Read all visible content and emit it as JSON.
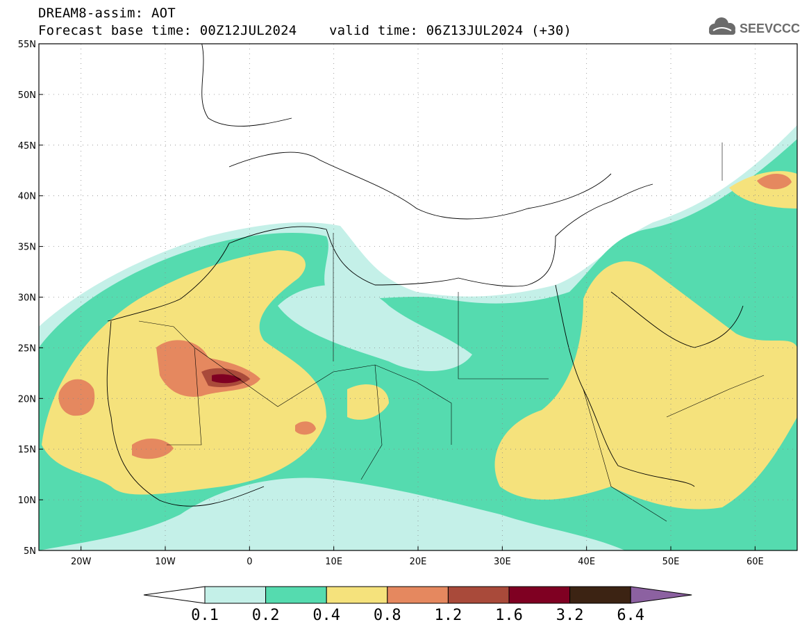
{
  "header": {
    "title_line1": "DREAM8-assim: AOT",
    "title_line2": "Forecast base time: 00Z12JUL2024    valid time: 06Z13JUL2024 (+30)",
    "logo_text": "SEEVCCC"
  },
  "map": {
    "lon_range": [
      -25,
      65
    ],
    "lat_range": [
      5,
      55
    ],
    "x_ticks": [
      "20W",
      "10W",
      "0",
      "10E",
      "20E",
      "30E",
      "40E",
      "50E",
      "60E"
    ],
    "x_tick_values": [
      -20,
      -10,
      0,
      10,
      20,
      30,
      40,
      50,
      60
    ],
    "y_ticks": [
      "5N",
      "10N",
      "15N",
      "20N",
      "25N",
      "30N",
      "35N",
      "40N",
      "45N",
      "50N",
      "55N"
    ],
    "y_tick_values": [
      5,
      10,
      15,
      20,
      25,
      30,
      35,
      40,
      45,
      50,
      55
    ],
    "grid": "dotted"
  },
  "colorbar": {
    "labels": [
      "0.1",
      "0.2",
      "0.4",
      "0.8",
      "1.2",
      "1.6",
      "3.2",
      "6.4"
    ],
    "colors": [
      "#ffffff",
      "#c4f0e8",
      "#55dbaf",
      "#f5e27c",
      "#e5885f",
      "#a94a3a",
      "#7f0022",
      "#3c2313",
      "#8c61a1"
    ]
  }
}
